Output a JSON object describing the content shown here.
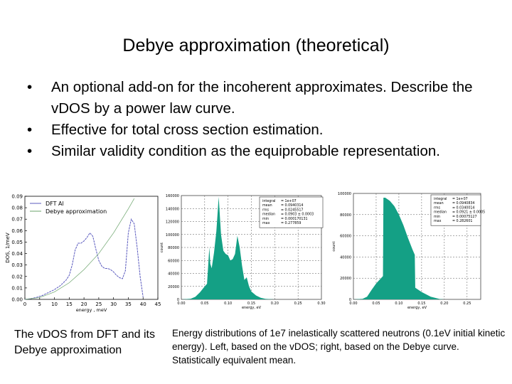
{
  "slide": {
    "title": "Debye approximation (theoretical)",
    "bullets": [
      "An optional add-on for the incoherent approximates. Describe the vDOS by a power law curve.",
      "Effective for total cross section estimation.",
      "Similar validity condition as the equiprobable representation."
    ],
    "caption_left": "The vDOS from DFT and its Debye approximation",
    "caption_right": "Energy distributions of 1e7 inelastically scattered neutrons (0.1eV initial kinetic energy). Left, based on the vDOS; right, based on the Debye curve. Statistically equivalent mean."
  },
  "colors": {
    "dft_line": "#5b5bbf",
    "debye_line": "#6aa36a",
    "hist_fill": "#14a085"
  },
  "chart_data": [
    {
      "type": "line",
      "title": "",
      "xlabel": "energy , meV",
      "ylabel": "DOS, 1/meV",
      "xlim": [
        0,
        45
      ],
      "ylim": [
        0,
        0.09
      ],
      "x_ticks": [
        "0",
        "5",
        "10",
        "15",
        "20",
        "25",
        "30",
        "35",
        "40",
        "45"
      ],
      "y_ticks": [
        "0.00",
        "0.01",
        "0.02",
        "0.03",
        "0.04",
        "0.05",
        "0.06",
        "0.07",
        "0.08",
        "0.09"
      ],
      "grid": false,
      "legend_position": "upper left",
      "series": [
        {
          "name": "DFT Al",
          "x": [
            0,
            2,
            4,
            6,
            8,
            10,
            12,
            14,
            15,
            16,
            17,
            18,
            19,
            20,
            21,
            22,
            23,
            24,
            25,
            26,
            27,
            28,
            29,
            30,
            31,
            32,
            33,
            34,
            35,
            36,
            37,
            38,
            39,
            40
          ],
          "y": [
            0,
            0.0006,
            0.0018,
            0.0035,
            0.006,
            0.0085,
            0.012,
            0.017,
            0.021,
            0.03,
            0.043,
            0.049,
            0.049,
            0.051,
            0.054,
            0.058,
            0.055,
            0.044,
            0.034,
            0.029,
            0.027,
            0.027,
            0.026,
            0.024,
            0.021,
            0.019,
            0.018,
            0.025,
            0.058,
            0.07,
            0.066,
            0.045,
            0.02,
            0.002
          ]
        },
        {
          "name": "Debye approximation",
          "x": [
            0,
            5,
            10,
            15,
            20,
            25,
            30,
            35,
            37
          ],
          "y": [
            0,
            0.0016,
            0.0065,
            0.0145,
            0.026,
            0.04,
            0.058,
            0.079,
            0.088
          ]
        }
      ]
    },
    {
      "type": "area",
      "title": "",
      "xlabel": "energy, eV",
      "ylabel": "count",
      "xlim": [
        0,
        0.3
      ],
      "ylim": [
        0,
        160000
      ],
      "x_ticks": [
        "0.00",
        "0.05",
        "0.10",
        "0.15",
        "0.20",
        "0.25",
        "0.30"
      ],
      "y_ticks": [
        "0",
        "20000",
        "40000",
        "60000",
        "80000",
        "100000",
        "120000",
        "140000",
        "160000"
      ],
      "grid": true,
      "stats_box": [
        {
          "label": "integral",
          "value": "1e+07"
        },
        {
          "label": "mean",
          "value": "0.0940314"
        },
        {
          "label": "rms",
          "value": "0.0245517"
        },
        {
          "label": "median",
          "value": "0.0903 ± 0.0003"
        },
        {
          "label": "min",
          "value": "0.000170131"
        },
        {
          "label": "max",
          "value": "0.277859"
        }
      ],
      "x": [
        0.0,
        0.02,
        0.03,
        0.04,
        0.05,
        0.055,
        0.06,
        0.062,
        0.065,
        0.07,
        0.075,
        0.08,
        0.085,
        0.09,
        0.095,
        0.1,
        0.105,
        0.11,
        0.115,
        0.12,
        0.125,
        0.13,
        0.135,
        0.14,
        0.145,
        0.15,
        0.16,
        0.17,
        0.18,
        0.2,
        0.3
      ],
      "values": [
        0,
        1000,
        4000,
        11000,
        20000,
        24000,
        80000,
        55000,
        48000,
        72000,
        105000,
        158000,
        100000,
        75000,
        70000,
        68000,
        60000,
        62000,
        70000,
        98000,
        80000,
        52000,
        30000,
        34000,
        20000,
        12000,
        6000,
        2500,
        800,
        0,
        0
      ]
    },
    {
      "type": "area",
      "title": "",
      "xlabel": "energy, eV",
      "ylabel": "count",
      "xlim": [
        0,
        0.28
      ],
      "ylim": [
        0,
        100000
      ],
      "x_ticks": [
        "0.00",
        "0.05",
        "0.10",
        "0.15",
        "0.20",
        "0.25"
      ],
      "y_ticks": [
        "0",
        "20000",
        "40000",
        "60000",
        "80000",
        "100000"
      ],
      "grid": true,
      "stats_box": [
        {
          "label": "integral",
          "value": "1e+07"
        },
        {
          "label": "mean",
          "value": "0.0940834"
        },
        {
          "label": "rms",
          "value": "0.0340014"
        },
        {
          "label": "median",
          "value": "0.0921 ± 0.0005"
        },
        {
          "label": "min",
          "value": "0.00075127"
        },
        {
          "label": "max",
          "value": "0.282601"
        }
      ],
      "x": [
        0.0,
        0.02,
        0.03,
        0.04,
        0.05,
        0.065,
        0.066,
        0.07,
        0.08,
        0.09,
        0.1,
        0.11,
        0.12,
        0.13,
        0.135,
        0.136,
        0.15,
        0.17,
        0.19,
        0.2,
        0.28
      ],
      "values": [
        0,
        500,
        2500,
        9000,
        15000,
        22000,
        96000,
        96000,
        93000,
        88000,
        80000,
        70000,
        58000,
        47000,
        42000,
        11000,
        7000,
        2500,
        300,
        0,
        0
      ]
    }
  ],
  "chart_labels": {
    "left": {
      "legend": [
        "DFT Al",
        "Debye approximation"
      ],
      "xlabel": "energy , meV",
      "ylabel": "DOS, 1/meV"
    },
    "middle": {
      "xlabel": "energy, eV",
      "ylabel": "count"
    },
    "right": {
      "xlabel": "energy, eV",
      "ylabel": "count"
    }
  }
}
